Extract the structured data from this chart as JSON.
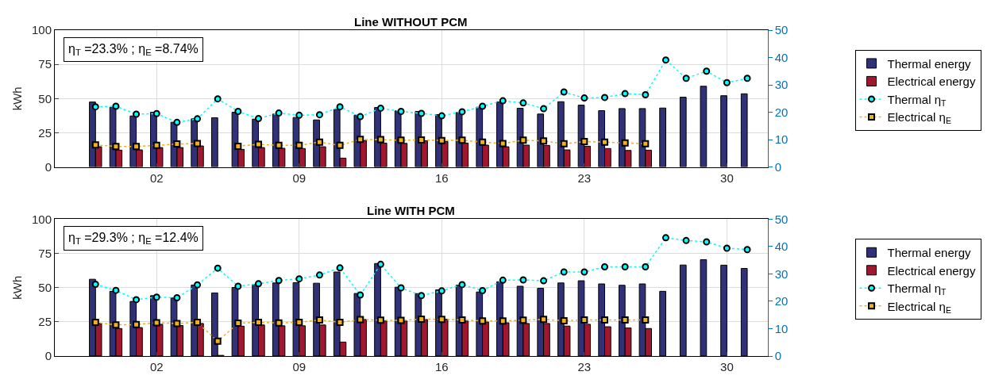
{
  "chart_data": [
    {
      "type": "bar",
      "title": "Line WITHOUT PCM",
      "ylabel": "kWh",
      "annotations": [
        "η$_{T}$ =23.3% ; η$_{E}$ =8.74%"
      ],
      "categories": [
        null,
        null,
        null,
        "02",
        null,
        null,
        null,
        null,
        null,
        null,
        "09",
        null,
        null,
        null,
        null,
        null,
        null,
        "16",
        null,
        null,
        null,
        null,
        null,
        null,
        "23",
        null,
        null,
        null,
        null,
        null,
        null,
        "30",
        null
      ],
      "ylim": [
        0,
        100
      ],
      "yticks": [
        0,
        25,
        50,
        75,
        100
      ],
      "y2lim": [
        0,
        50
      ],
      "y2ticks": [
        0,
        10,
        20,
        30,
        40,
        50
      ],
      "grid": true,
      "legend": "right",
      "series": [
        {
          "name": "Thermal energy",
          "color": "#313178",
          "values": [
            47.5,
            43.7,
            37.3,
            40.0,
            32.7,
            35.2,
            36.0,
            40.0,
            35.0,
            38.7,
            36.2,
            34.4,
            42.1,
            37.9,
            43.5,
            41.0,
            40.6,
            38.3,
            39.8,
            43.7,
            47.5,
            42.9,
            38.7,
            47.7,
            45.2,
            41.2,
            42.7,
            42.7,
            43.1,
            51.0,
            59.0,
            52.1,
            53.5
          ]
        },
        {
          "name": "Electrical energy",
          "color": "#a0172f",
          "values": [
            14.8,
            12.3,
            12.5,
            14.2,
            14.2,
            15.4,
            null,
            12.9,
            14.2,
            13.7,
            13.5,
            14.8,
            6.5,
            19.4,
            17.5,
            17.3,
            19.2,
            18.7,
            17.5,
            16.0,
            14.8,
            16.0,
            15.8,
            12.5,
            15.2,
            13.5,
            12.1,
            12.3,
            null,
            null,
            null,
            null,
            null
          ]
        },
        {
          "name": "Thermal η$_{T}$",
          "type": "line",
          "axis": "y2",
          "color": "#00ffff",
          "marker": "circle",
          "line_style": "dotted",
          "values": [
            22.0,
            22.2,
            19.3,
            19.5,
            16.3,
            17.6,
            24.9,
            20.3,
            17.7,
            19.7,
            18.9,
            19.1,
            22.0,
            18.4,
            21.5,
            20.3,
            19.6,
            18.7,
            20.2,
            22.2,
            24.2,
            23.4,
            21.3,
            27.4,
            25.2,
            25.4,
            26.8,
            26.4,
            39.1,
            32.4,
            35.0,
            30.8,
            32.4
          ]
        },
        {
          "name": "Electrical η$_{E}$",
          "type": "line",
          "axis": "y2",
          "color": "#edb120",
          "marker": "square",
          "line_style": "dotted",
          "values": [
            8.1,
            7.5,
            7.5,
            7.9,
            8.4,
            8.6,
            null,
            7.6,
            8.3,
            7.9,
            7.9,
            9.1,
            7.9,
            10.1,
            10.0,
            9.8,
            9.9,
            9.7,
            9.8,
            9.1,
            8.6,
            9.8,
            9.5,
            8.5,
            9.3,
            9.1,
            8.8,
            8.5,
            null,
            null,
            null,
            null,
            null
          ]
        }
      ]
    },
    {
      "type": "bar",
      "title": "Line WITH PCM",
      "ylabel": "kWh",
      "annotations": [
        "η$_{T}$ =29.3% ; η$_{E}$ =12.4%"
      ],
      "categories": [
        null,
        null,
        null,
        "02",
        null,
        null,
        null,
        null,
        null,
        null,
        "09",
        null,
        null,
        null,
        null,
        null,
        null,
        "16",
        null,
        null,
        null,
        null,
        null,
        null,
        "23",
        null,
        null,
        null,
        null,
        null,
        null,
        "30",
        null
      ],
      "ylim": [
        0,
        100
      ],
      "yticks": [
        0,
        25,
        50,
        75,
        100
      ],
      "y2lim": [
        0,
        50
      ],
      "y2ticks": [
        0,
        10,
        20,
        30,
        40,
        50
      ],
      "grid": true,
      "legend": "right",
      "series": [
        {
          "name": "Thermal energy",
          "color": "#313178",
          "values": [
            56.1,
            47.3,
            39.9,
            44.1,
            42.4,
            51.9,
            46.1,
            50.1,
            52.3,
            53.4,
            53.6,
            53.2,
            61.4,
            45.7,
            67.6,
            50.3,
            45.6,
            48.4,
            51.7,
            46.8,
            54.3,
            51.0,
            49.5,
            53.4,
            55.0,
            52.7,
            51.7,
            52.7,
            47.3,
            66.5,
            70.4,
            66.4,
            64.0
          ]
        },
        {
          "name": "Electrical energy",
          "color": "#a0172f",
          "values": [
            23.8,
            20.1,
            20.8,
            23.2,
            22.3,
            23.8,
            0.5,
            21.8,
            22.7,
            22.1,
            22.1,
            22.7,
            10.2,
            26.7,
            25.6,
            25.6,
            26.7,
            26.9,
            25.6,
            24.9,
            24.3,
            23.8,
            23.8,
            21.9,
            23.2,
            21.4,
            20.5,
            20.1,
            null,
            null,
            null,
            null,
            null
          ]
        },
        {
          "name": "Thermal η$_{T}$",
          "type": "line",
          "axis": "y2",
          "color": "#00ffff",
          "marker": "circle",
          "line_style": "dotted",
          "values": [
            26.2,
            24.0,
            20.6,
            21.5,
            21.3,
            26.0,
            32.1,
            25.5,
            26.4,
            27.6,
            28.2,
            29.6,
            32.2,
            22.3,
            33.5,
            24.9,
            22.1,
            23.8,
            26.1,
            23.9,
            27.7,
            27.8,
            27.5,
            30.7,
            30.7,
            32.6,
            32.6,
            32.6,
            43.2,
            42.2,
            41.7,
            39.4,
            38.9
          ]
        },
        {
          "name": "Electrical η$_{E}$",
          "type": "line",
          "axis": "y2",
          "color": "#edb120",
          "marker": "square",
          "line_style": "dotted",
          "values": [
            12.3,
            11.4,
            11.5,
            12.2,
            11.9,
            12.3,
            5.4,
            12.0,
            12.3,
            12.1,
            12.3,
            13.2,
            12.3,
            13.3,
            13.1,
            13.0,
            13.5,
            13.4,
            13.2,
            12.8,
            12.8,
            13.1,
            13.4,
            12.9,
            13.2,
            13.2,
            13.2,
            13.2,
            null,
            null,
            null,
            null,
            null
          ]
        }
      ]
    }
  ]
}
